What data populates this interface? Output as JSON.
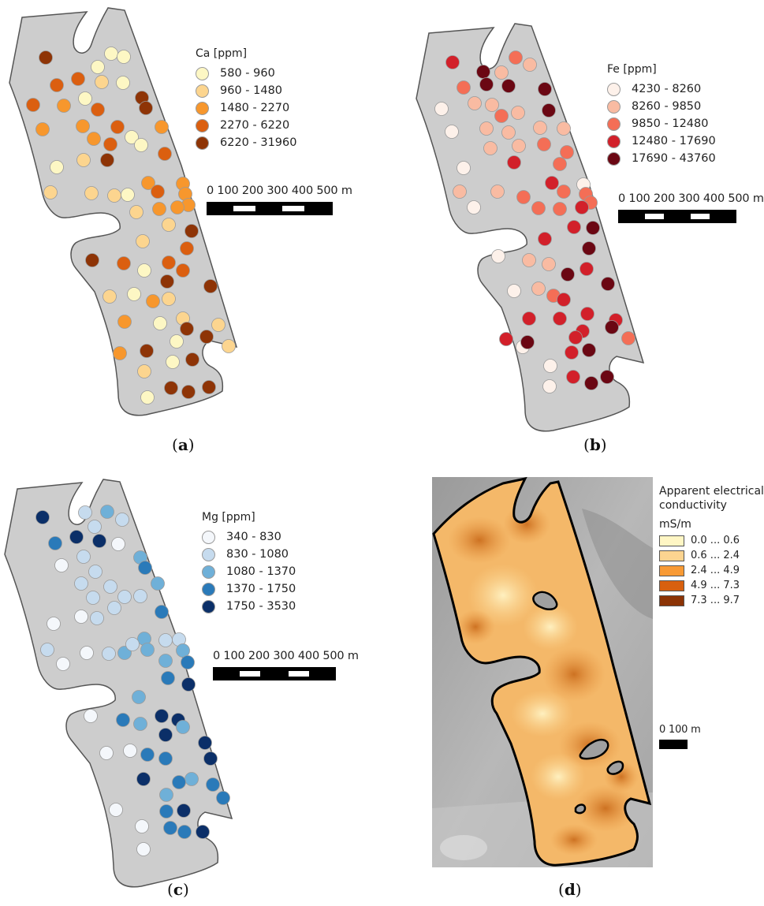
{
  "panels": [
    {
      "id": "a",
      "caption_letter": "a",
      "legend_title": "Ca [ppm]",
      "classes": [
        {
          "label": "580 - 960",
          "color": "#fdf7c4"
        },
        {
          "label": "960 - 1480",
          "color": "#fcd58f"
        },
        {
          "label": "1480 - 2270",
          "color": "#f7972d"
        },
        {
          "label": "2270 - 6220",
          "color": "#db5f10"
        },
        {
          "label": "6220 - 31960",
          "color": "#8e3406"
        }
      ],
      "scale_labels": "0   100 200 300 400 500 m"
    },
    {
      "id": "b",
      "caption_letter": "b",
      "legend_title": "Fe [ppm]",
      "classes": [
        {
          "label": "4230 - 8260",
          "color": "#fdf1ea"
        },
        {
          "label": "8260 - 9850",
          "color": "#f9bba2"
        },
        {
          "label": "9850 - 12480",
          "color": "#f46e56"
        },
        {
          "label": "12480 - 17690",
          "color": "#d2202a"
        },
        {
          "label": "17690 - 43760",
          "color": "#6b0713"
        }
      ],
      "scale_labels": "0   100 200 300 400 500 m"
    },
    {
      "id": "c",
      "caption_letter": "c",
      "legend_title": "Mg [ppm]",
      "classes": [
        {
          "label": "340 - 830",
          "color": "#f4f7fb"
        },
        {
          "label": "830 - 1080",
          "color": "#c6dbee"
        },
        {
          "label": "1080 - 1370",
          "color": "#6fb0d8"
        },
        {
          "label": "1370 - 1750",
          "color": "#2a7ab9"
        },
        {
          "label": "1750 - 3530",
          "color": "#0b2f68"
        }
      ],
      "scale_labels": "0   100 200 300 400 500 m"
    },
    {
      "id": "d",
      "caption_letter": "d",
      "legend_title_line1": "Apparent electrical",
      "legend_title_line2": "conductivity",
      "legend_unit": "mS/m",
      "classes": [
        {
          "label": "0.0 ... 0.6",
          "color": "#fff6c4"
        },
        {
          "label": "0.6 ... 2.4",
          "color": "#fcd490"
        },
        {
          "label": "2.4 ... 4.9",
          "color": "#f89a35"
        },
        {
          "label": "4.9 ... 7.3",
          "color": "#d8600f"
        },
        {
          "label": "7.3 ... 9.7",
          "color": "#8b3305"
        }
      ],
      "scale_labels": "0   100 m"
    }
  ],
  "points": {
    "a": [
      [
        58,
        73,
        4
      ],
      [
        124,
        85,
        0
      ],
      [
        141,
        68,
        0
      ],
      [
        157,
        72,
        0
      ],
      [
        72,
        108,
        3
      ],
      [
        99,
        100,
        3
      ],
      [
        129,
        104,
        1
      ],
      [
        156,
        105,
        0
      ],
      [
        108,
        125,
        0
      ],
      [
        81,
        134,
        2
      ],
      [
        180,
        124,
        4
      ],
      [
        185,
        137,
        4
      ],
      [
        42,
        133,
        3
      ],
      [
        124,
        139,
        3
      ],
      [
        149,
        161,
        3
      ],
      [
        54,
        164,
        2
      ],
      [
        105,
        160,
        2
      ],
      [
        119,
        176,
        2
      ],
      [
        140,
        183,
        3
      ],
      [
        167,
        174,
        0
      ],
      [
        179,
        184,
        0
      ],
      [
        205,
        161,
        2
      ],
      [
        209,
        195,
        3
      ],
      [
        106,
        203,
        1
      ],
      [
        136,
        203,
        4
      ],
      [
        72,
        212,
        0
      ],
      [
        64,
        244,
        1
      ],
      [
        116,
        245,
        1
      ],
      [
        145,
        248,
        1
      ],
      [
        162,
        247,
        0
      ],
      [
        188,
        232,
        2
      ],
      [
        200,
        243,
        3
      ],
      [
        232,
        233,
        2
      ],
      [
        235,
        246,
        2
      ],
      [
        239,
        260,
        2
      ],
      [
        173,
        269,
        1
      ],
      [
        202,
        265,
        2
      ],
      [
        225,
        263,
        2
      ],
      [
        214,
        285,
        1
      ],
      [
        243,
        293,
        4
      ],
      [
        181,
        306,
        1
      ],
      [
        117,
        330,
        4
      ],
      [
        157,
        334,
        3
      ],
      [
        214,
        333,
        3
      ],
      [
        237,
        315,
        3
      ],
      [
        183,
        343,
        0
      ],
      [
        212,
        357,
        4
      ],
      [
        232,
        343,
        3
      ],
      [
        139,
        376,
        1
      ],
      [
        170,
        373,
        0
      ],
      [
        194,
        382,
        2
      ],
      [
        214,
        379,
        1
      ],
      [
        267,
        363,
        4
      ],
      [
        232,
        404,
        1
      ],
      [
        158,
        408,
        2
      ],
      [
        203,
        410,
        0
      ],
      [
        237,
        417,
        4
      ],
      [
        277,
        412,
        1
      ],
      [
        186,
        445,
        4
      ],
      [
        224,
        433,
        0
      ],
      [
        262,
        427,
        4
      ],
      [
        290,
        439,
        1
      ],
      [
        244,
        456,
        4
      ],
      [
        219,
        459,
        0
      ],
      [
        183,
        471,
        1
      ],
      [
        152,
        448,
        2
      ],
      [
        217,
        492,
        4
      ],
      [
        239,
        497,
        4
      ],
      [
        265,
        491,
        4
      ],
      [
        187,
        504,
        0
      ]
    ],
    "b": [
      [
        574,
        79,
        3
      ],
      [
        654,
        73,
        2
      ],
      [
        672,
        82,
        1
      ],
      [
        613,
        91,
        4
      ],
      [
        636,
        92,
        1
      ],
      [
        588,
        111,
        2
      ],
      [
        617,
        107,
        4
      ],
      [
        645,
        109,
        4
      ],
      [
        691,
        113,
        4
      ],
      [
        560,
        138,
        0
      ],
      [
        602,
        131,
        1
      ],
      [
        624,
        133,
        1
      ],
      [
        657,
        143,
        1
      ],
      [
        696,
        140,
        4
      ],
      [
        573,
        167,
        0
      ],
      [
        617,
        163,
        1
      ],
      [
        636,
        147,
        2
      ],
      [
        645,
        168,
        1
      ],
      [
        685,
        162,
        1
      ],
      [
        715,
        163,
        1
      ],
      [
        622,
        188,
        1
      ],
      [
        658,
        185,
        1
      ],
      [
        690,
        183,
        2
      ],
      [
        719,
        193,
        2
      ],
      [
        588,
        213,
        0
      ],
      [
        652,
        206,
        3
      ],
      [
        710,
        208,
        2
      ],
      [
        740,
        234,
        0
      ],
      [
        583,
        243,
        1
      ],
      [
        631,
        243,
        1
      ],
      [
        664,
        250,
        2
      ],
      [
        700,
        232,
        3
      ],
      [
        715,
        243,
        2
      ],
      [
        743,
        246,
        2
      ],
      [
        749,
        257,
        2
      ],
      [
        683,
        264,
        2
      ],
      [
        710,
        265,
        2
      ],
      [
        738,
        263,
        3
      ],
      [
        601,
        263,
        0
      ],
      [
        728,
        288,
        3
      ],
      [
        752,
        289,
        4
      ],
      [
        691,
        303,
        3
      ],
      [
        632,
        325,
        0
      ],
      [
        671,
        330,
        1
      ],
      [
        696,
        335,
        1
      ],
      [
        747,
        315,
        4
      ],
      [
        720,
        348,
        4
      ],
      [
        744,
        341,
        3
      ],
      [
        652,
        369,
        0
      ],
      [
        683,
        366,
        1
      ],
      [
        702,
        375,
        2
      ],
      [
        715,
        380,
        3
      ],
      [
        771,
        360,
        4
      ],
      [
        745,
        398,
        3
      ],
      [
        671,
        404,
        3
      ],
      [
        710,
        404,
        3
      ],
      [
        781,
        406,
        3
      ],
      [
        739,
        420,
        3
      ],
      [
        797,
        429,
        2
      ],
      [
        642,
        430,
        3
      ],
      [
        663,
        440,
        0
      ],
      [
        730,
        428,
        3
      ],
      [
        776,
        415,
        4
      ],
      [
        669,
        434,
        4
      ],
      [
        747,
        444,
        4
      ],
      [
        725,
        447,
        3
      ],
      [
        698,
        464,
        0
      ],
      [
        727,
        478,
        3
      ],
      [
        750,
        486,
        4
      ],
      [
        770,
        478,
        4
      ],
      [
        697,
        490,
        0
      ]
    ],
    "c": [
      [
        54,
        656,
        4
      ],
      [
        108,
        650,
        1
      ],
      [
        136,
        649,
        2
      ],
      [
        155,
        659,
        1
      ],
      [
        97,
        681,
        4
      ],
      [
        126,
        686,
        4
      ],
      [
        150,
        690,
        0
      ],
      [
        120,
        668,
        1
      ],
      [
        70,
        689,
        3
      ],
      [
        78,
        717,
        0
      ],
      [
        106,
        706,
        1
      ],
      [
        121,
        725,
        1
      ],
      [
        178,
        707,
        2
      ],
      [
        184,
        720,
        3
      ],
      [
        103,
        740,
        1
      ],
      [
        118,
        758,
        1
      ],
      [
        140,
        744,
        1
      ],
      [
        158,
        757,
        1
      ],
      [
        145,
        771,
        1
      ],
      [
        178,
        756,
        1
      ],
      [
        200,
        740,
        2
      ],
      [
        205,
        776,
        3
      ],
      [
        103,
        782,
        0
      ],
      [
        123,
        784,
        1
      ],
      [
        68,
        791,
        0
      ],
      [
        183,
        810,
        2
      ],
      [
        210,
        812,
        1
      ],
      [
        227,
        811,
        1
      ],
      [
        232,
        825,
        2
      ],
      [
        60,
        824,
        1
      ],
      [
        110,
        828,
        0
      ],
      [
        138,
        829,
        1
      ],
      [
        158,
        828,
        2
      ],
      [
        168,
        817,
        1
      ],
      [
        187,
        824,
        2
      ],
      [
        210,
        838,
        2
      ],
      [
        238,
        840,
        3
      ],
      [
        80,
        842,
        0
      ],
      [
        213,
        860,
        3
      ],
      [
        239,
        868,
        4
      ],
      [
        176,
        884,
        2
      ],
      [
        115,
        908,
        0
      ],
      [
        156,
        913,
        3
      ],
      [
        178,
        918,
        2
      ],
      [
        205,
        908,
        4
      ],
      [
        226,
        913,
        4
      ],
      [
        210,
        932,
        4
      ],
      [
        232,
        922,
        2
      ],
      [
        260,
        942,
        4
      ],
      [
        267,
        962,
        4
      ],
      [
        135,
        955,
        0
      ],
      [
        165,
        952,
        0
      ],
      [
        187,
        957,
        3
      ],
      [
        210,
        962,
        3
      ],
      [
        243,
        988,
        2
      ],
      [
        270,
        995,
        3
      ],
      [
        283,
        1012,
        3
      ],
      [
        211,
        1008,
        2
      ],
      [
        182,
        988,
        4
      ],
      [
        227,
        992,
        3
      ],
      [
        211,
        1029,
        3
      ],
      [
        233,
        1028,
        4
      ],
      [
        147,
        1027,
        0
      ],
      [
        180,
        1048,
        0
      ],
      [
        234,
        1055,
        3
      ],
      [
        216,
        1050,
        3
      ],
      [
        257,
        1055,
        4
      ],
      [
        182,
        1077,
        0
      ]
    ]
  }
}
